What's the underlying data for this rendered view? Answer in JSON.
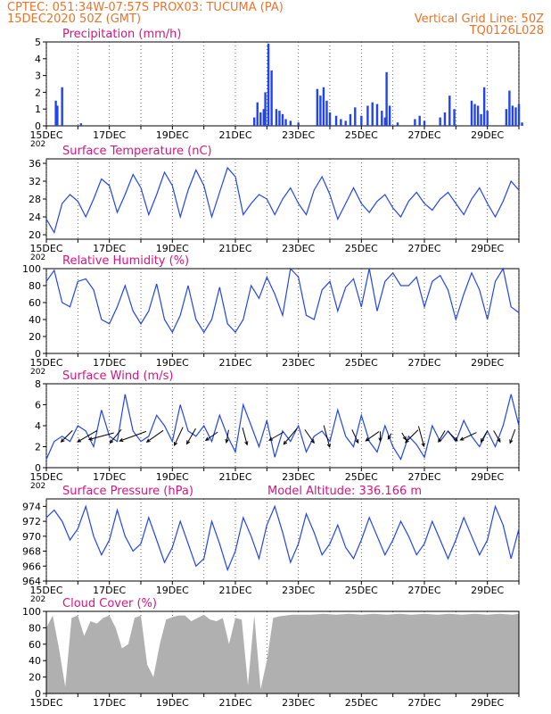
{
  "header": {
    "line1": "CPTEC:   051:34W-07:57S   PROX03: TUCUMA (PA)",
    "line2": "15DEC2020 50Z (GMT)",
    "grid_note": "Vertical Grid Line: 50Z",
    "code": "TQ0126L028"
  },
  "colors": {
    "header_text": "#e8742b",
    "panel_title": "#d6157f",
    "series": "#2244ee",
    "cloud": "#b0b0b0",
    "arrow": "#000000",
    "axis": "#000000"
  },
  "x_axis": {
    "tick_labels": [
      "15DEC",
      "17DEC",
      "19DEC",
      "21DEC",
      "23DEC",
      "25DEC",
      "27DEC",
      "29DEC"
    ],
    "leftover_label": "202"
  },
  "chart_data": [
    {
      "type": "bar",
      "title": "Precipitation (mm/h)",
      "ylim": [
        0,
        5
      ],
      "y_ticks": [
        "0",
        "1",
        "2",
        "3",
        "4",
        "5"
      ],
      "x": [
        0.3,
        0.35,
        0.5,
        1.1,
        6.6,
        6.7,
        6.8,
        6.9,
        6.95,
        7.05,
        7.15,
        7.3,
        7.4,
        7.5,
        7.6,
        7.75,
        8.0,
        8.6,
        8.7,
        8.8,
        8.9,
        9.0,
        9.2,
        9.35,
        9.5,
        9.65,
        9.8,
        10.0,
        10.2,
        10.35,
        10.5,
        10.65,
        10.75,
        10.8,
        10.9,
        11.15,
        11.7,
        11.85,
        12.0,
        12.5,
        12.65,
        12.8,
        12.95,
        13.5,
        13.6,
        13.7,
        13.8,
        13.9,
        14.0,
        14.6,
        14.7,
        14.8,
        14.9,
        15.0,
        15.1
      ],
      "values": [
        1.5,
        1.2,
        2.3,
        0.15,
        0.5,
        1.4,
        0.8,
        1.0,
        2.0,
        4.9,
        3.3,
        1.0,
        0.9,
        0.7,
        0.4,
        0.3,
        0.2,
        2.2,
        1.8,
        2.3,
        1.5,
        0.8,
        0.6,
        0.4,
        0.3,
        0.7,
        1.1,
        0.6,
        1.2,
        1.4,
        1.3,
        0.9,
        0.5,
        3.2,
        1.2,
        0.2,
        0.4,
        0.6,
        0.3,
        0.5,
        0.8,
        1.8,
        1.0,
        1.5,
        1.3,
        1.2,
        0.7,
        2.3,
        0.9,
        1.0,
        2.1,
        1.2,
        1.1,
        1.3,
        0.2
      ]
    },
    {
      "type": "line",
      "title": "Surface Temperature (nC)",
      "ylim": [
        19,
        37
      ],
      "y_ticks": [
        "20",
        "24",
        "28",
        "32",
        "36"
      ],
      "x": [
        0,
        0.25,
        0.5,
        0.75,
        1,
        1.25,
        1.5,
        1.75,
        2,
        2.25,
        2.5,
        2.75,
        3,
        3.25,
        3.5,
        3.75,
        4,
        4.25,
        4.5,
        4.75,
        5,
        5.25,
        5.5,
        5.75,
        6,
        6.25,
        6.5,
        6.75,
        7,
        7.25,
        7.5,
        7.75,
        8,
        8.25,
        8.5,
        8.75,
        9,
        9.25,
        9.5,
        9.75,
        10,
        10.25,
        10.5,
        10.75,
        11,
        11.25,
        11.5,
        11.75,
        12,
        12.25,
        12.5,
        12.75,
        13,
        13.25,
        13.5,
        13.75,
        14,
        14.25,
        14.5,
        14.75,
        15
      ],
      "values": [
        23.5,
        20.5,
        27,
        29,
        27.5,
        24,
        28,
        32.5,
        31,
        25,
        29,
        33.5,
        30.5,
        24.5,
        29,
        34,
        31,
        24,
        30,
        34.5,
        31,
        24,
        29.5,
        35,
        33,
        24.5,
        27,
        29,
        28,
        24.5,
        28,
        30.5,
        27,
        24.5,
        30,
        33,
        29,
        23.5,
        27,
        30.5,
        27,
        25,
        27.5,
        29,
        26,
        24,
        27.5,
        29.5,
        27,
        25.5,
        28,
        29.5,
        27,
        24.5,
        28,
        30.5,
        27,
        24,
        27.5,
        32,
        30
      ]
    },
    {
      "type": "line",
      "title": "Relative Humidity (%)",
      "ylim": [
        0,
        100
      ],
      "y_ticks": [
        "0",
        "20",
        "40",
        "60",
        "80",
        "100"
      ],
      "x": [
        0,
        0.25,
        0.5,
        0.75,
        1,
        1.25,
        1.5,
        1.75,
        2,
        2.25,
        2.5,
        2.75,
        3,
        3.25,
        3.5,
        3.75,
        4,
        4.25,
        4.5,
        4.75,
        5,
        5.25,
        5.5,
        5.75,
        6,
        6.25,
        6.5,
        6.75,
        7,
        7.25,
        7.5,
        7.75,
        8,
        8.25,
        8.5,
        8.75,
        9,
        9.25,
        9.5,
        9.75,
        10,
        10.25,
        10.5,
        10.75,
        11,
        11.25,
        11.5,
        11.75,
        12,
        12.25,
        12.5,
        12.75,
        13,
        13.25,
        13.5,
        13.75,
        14,
        14.25,
        14.5,
        14.75,
        15
      ],
      "values": [
        85,
        98,
        60,
        55,
        85,
        88,
        75,
        40,
        35,
        55,
        80,
        50,
        35,
        50,
        82,
        40,
        25,
        45,
        80,
        40,
        25,
        40,
        78,
        35,
        25,
        40,
        80,
        65,
        90,
        70,
        45,
        100,
        90,
        45,
        40,
        75,
        85,
        50,
        78,
        88,
        55,
        100,
        50,
        85,
        95,
        80,
        80,
        90,
        55,
        85,
        92,
        75,
        40,
        70,
        95,
        75,
        40,
        85,
        100,
        55,
        48
      ]
    },
    {
      "type": "line",
      "title": "Surface Wind (m/s)",
      "ylim": [
        0,
        8
      ],
      "y_ticks": [
        "0",
        "2",
        "4",
        "6",
        "8"
      ],
      "x": [
        0,
        0.25,
        0.5,
        0.75,
        1,
        1.25,
        1.5,
        1.75,
        2,
        2.25,
        2.5,
        2.75,
        3,
        3.25,
        3.5,
        3.75,
        4,
        4.25,
        4.5,
        4.75,
        5,
        5.25,
        5.5,
        5.75,
        6,
        6.25,
        6.5,
        6.75,
        7,
        7.25,
        7.5,
        7.75,
        8,
        8.25,
        8.5,
        8.75,
        9,
        9.25,
        9.5,
        9.75,
        10,
        10.25,
        10.5,
        10.75,
        11,
        11.25,
        11.5,
        11.75,
        12,
        12.25,
        12.5,
        12.75,
        13,
        13.25,
        13.5,
        13.75,
        14,
        14.25,
        14.5,
        14.75,
        15
      ],
      "values": [
        0.8,
        2.5,
        3,
        2.5,
        4,
        3.5,
        2,
        5.5,
        3,
        2.5,
        7,
        3.5,
        2.5,
        3,
        5,
        4,
        2.5,
        6,
        3.5,
        3,
        4,
        2.5,
        5,
        3,
        1.5,
        6,
        4,
        2,
        4.5,
        1,
        3.5,
        2.5,
        4,
        1.5,
        3,
        3.5,
        2.5,
        5.5,
        3,
        2,
        5,
        2.5,
        1.5,
        4,
        2,
        0.8,
        3,
        2.2,
        1,
        4,
        2.5,
        3.5,
        2.5,
        4.5,
        3,
        2,
        3.5,
        2,
        4,
        7,
        4
      ],
      "arrows": [
        {
          "day": 0.65,
          "speed": 2.0,
          "dir_deg": 135
        },
        {
          "day": 1.3,
          "speed": 2.8,
          "dir_deg": 150
        },
        {
          "day": 1.75,
          "speed": 3.2,
          "dir_deg": 165
        },
        {
          "day": 2.2,
          "speed": 2.2,
          "dir_deg": 130
        },
        {
          "day": 2.75,
          "speed": 3.5,
          "dir_deg": 160
        },
        {
          "day": 3.45,
          "speed": 2.5,
          "dir_deg": 145
        },
        {
          "day": 4.2,
          "speed": 2.5,
          "dir_deg": 115
        },
        {
          "day": 4.6,
          "speed": 2.2,
          "dir_deg": 120
        },
        {
          "day": 5.25,
          "speed": 1.8,
          "dir_deg": 145
        },
        {
          "day": 5.75,
          "speed": 1.6,
          "dir_deg": 100
        },
        {
          "day": 6.3,
          "speed": 2.2,
          "dir_deg": 75
        },
        {
          "day": 7.3,
          "speed": 2.0,
          "dir_deg": 150
        },
        {
          "day": 7.75,
          "speed": 2.6,
          "dir_deg": 130
        },
        {
          "day": 8.35,
          "speed": 2.0,
          "dir_deg": 55
        },
        {
          "day": 8.9,
          "speed": 2.8,
          "dir_deg": 75
        },
        {
          "day": 9.8,
          "speed": 1.8,
          "dir_deg": 65
        },
        {
          "day": 10.35,
          "speed": 2.0,
          "dir_deg": 145
        },
        {
          "day": 10.6,
          "speed": 1.2,
          "dir_deg": 90
        },
        {
          "day": 10.9,
          "speed": 0.8,
          "dir_deg": 120
        },
        {
          "day": 11.35,
          "speed": 1.0,
          "dir_deg": 60
        },
        {
          "day": 11.6,
          "speed": 2.2,
          "dir_deg": 135
        },
        {
          "day": 11.9,
          "speed": 2.6,
          "dir_deg": 75
        },
        {
          "day": 12.55,
          "speed": 1.6,
          "dir_deg": 120
        },
        {
          "day": 12.9,
          "speed": 1.6,
          "dir_deg": 45
        },
        {
          "day": 13.4,
          "speed": 2.2,
          "dir_deg": 155
        },
        {
          "day": 13.9,
          "speed": 1.6,
          "dir_deg": 120
        },
        {
          "day": 14.3,
          "speed": 1.6,
          "dir_deg": 60
        },
        {
          "day": 14.8,
          "speed": 1.8,
          "dir_deg": 110
        }
      ]
    },
    {
      "type": "line",
      "title": "Surface Pressure (hPa)",
      "annotation": "Model Altitude: 336.166 m",
      "ylim": [
        964,
        975
      ],
      "y_ticks": [
        "964",
        "966",
        "968",
        "970",
        "972",
        "974"
      ],
      "x": [
        0,
        0.25,
        0.5,
        0.75,
        1,
        1.25,
        1.5,
        1.75,
        2,
        2.25,
        2.5,
        2.75,
        3,
        3.25,
        3.5,
        3.75,
        4,
        4.25,
        4.5,
        4.75,
        5,
        5.25,
        5.5,
        5.75,
        6,
        6.25,
        6.5,
        6.75,
        7,
        7.25,
        7.5,
        7.75,
        8,
        8.25,
        8.5,
        8.75,
        9,
        9.25,
        9.5,
        9.75,
        10,
        10.25,
        10.5,
        10.75,
        11,
        11.25,
        11.5,
        11.75,
        12,
        12.25,
        12.5,
        12.75,
        13,
        13.25,
        13.5,
        13.75,
        14,
        14.25,
        14.5,
        14.75,
        15
      ],
      "values": [
        972.5,
        973.5,
        972,
        969.5,
        971,
        974,
        970,
        967.5,
        969.5,
        973.5,
        970,
        968,
        969,
        972.5,
        969.5,
        966.5,
        968.5,
        972,
        969,
        966,
        967,
        972,
        969,
        965.5,
        968,
        972.5,
        970,
        967,
        971.5,
        974,
        970.5,
        966.5,
        969,
        973,
        970.5,
        967.5,
        969,
        971.5,
        968.5,
        967,
        969.5,
        972.5,
        970,
        967.5,
        969.5,
        972,
        970,
        967.5,
        969,
        972,
        969.5,
        967,
        969.5,
        972.5,
        970,
        967.5,
        969.5,
        974,
        971.5,
        967,
        971
      ]
    },
    {
      "type": "area",
      "title": "Cloud Cover (%)",
      "ylim": [
        0,
        100
      ],
      "y_ticks": [
        "0",
        "20",
        "40",
        "60",
        "80",
        "100"
      ],
      "x": [
        0,
        0.2,
        0.4,
        0.6,
        0.8,
        1,
        1.2,
        1.4,
        1.6,
        1.8,
        2,
        2.2,
        2.4,
        2.6,
        2.8,
        3,
        3.2,
        3.4,
        3.6,
        3.8,
        4,
        4.2,
        4.4,
        4.6,
        4.8,
        5,
        5.2,
        5.4,
        5.6,
        5.8,
        6,
        6.2,
        6.4,
        6.6,
        6.8,
        7,
        7.2,
        7.4,
        7.6,
        7.8,
        8,
        8.4,
        8.8,
        9.2,
        9.6,
        10,
        10.4,
        10.8,
        11.2,
        11.6,
        12,
        12.4,
        12.8,
        13.2,
        13.6,
        14,
        14.4,
        14.8,
        15
      ],
      "values": [
        80,
        95,
        55,
        8,
        92,
        95,
        70,
        88,
        85,
        92,
        95,
        80,
        55,
        60,
        92,
        95,
        35,
        20,
        60,
        90,
        93,
        95,
        95,
        88,
        92,
        96,
        90,
        88,
        92,
        60,
        92,
        90,
        10,
        95,
        5,
        40,
        92,
        94,
        95,
        96,
        96,
        96,
        97,
        96,
        97,
        96,
        97,
        96,
        97,
        96,
        97,
        96,
        97,
        96,
        97,
        96,
        97,
        96,
        97
      ]
    }
  ]
}
